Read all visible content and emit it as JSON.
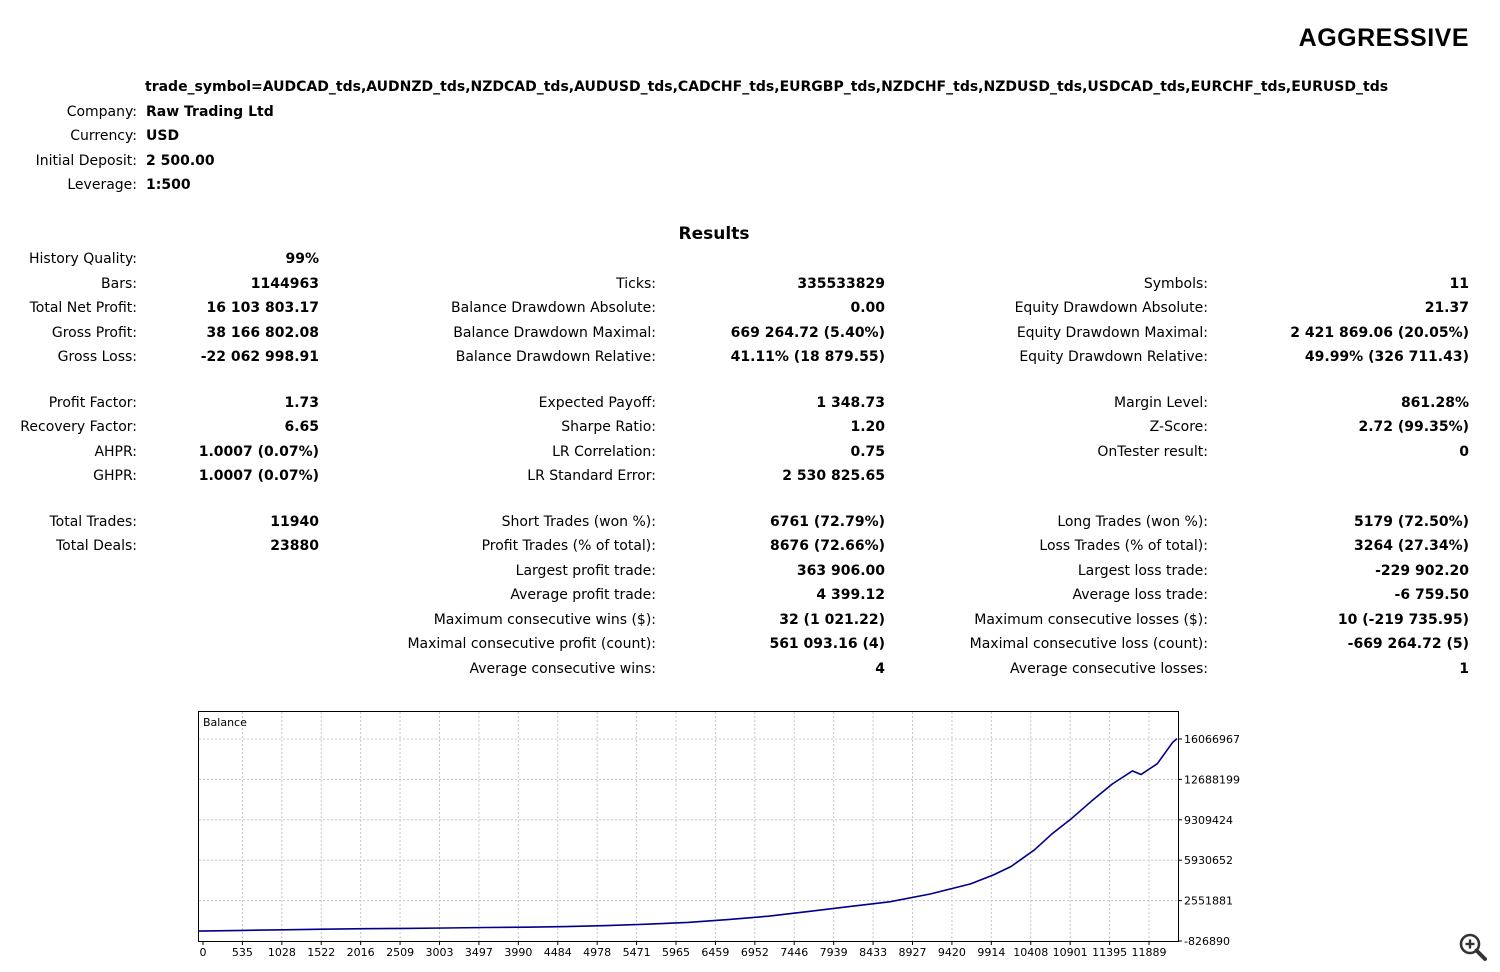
{
  "report": {
    "title": "AGGRESSIVE",
    "trade_symbol": "trade_symbol=AUDCAD_tds,AUDNZD_tds,NZDCAD_tds,AUDUSD_tds,CADCHF_tds,EURGBP_tds,NZDCHF_tds,NZDUSD_tds,USDCAD_tds,EURCHF_tds,EURUSD_tds"
  },
  "info": [
    {
      "label": "Company:",
      "value": "Raw Trading Ltd"
    },
    {
      "label": "Currency:",
      "value": "USD"
    },
    {
      "label": "Initial Deposit:",
      "value": "2 500.00"
    },
    {
      "label": "Leverage:",
      "value": "1:500"
    }
  ],
  "results_heading": "Results",
  "results": {
    "col1": [
      {
        "label": "History Quality:",
        "value": "99%"
      },
      {
        "label": "Bars:",
        "value": "1144963"
      },
      {
        "label": "Total Net Profit:",
        "value": "16 103 803.17"
      },
      {
        "label": "Gross Profit:",
        "value": "38 166 802.08"
      },
      {
        "label": "Gross Loss:",
        "value": "-22 062 998.91"
      },
      {
        "label": "Profit Factor:",
        "value": "1.73"
      },
      {
        "label": "Recovery Factor:",
        "value": "6.65"
      },
      {
        "label": "AHPR:",
        "value": "1.0007 (0.07%)"
      },
      {
        "label": "GHPR:",
        "value": "1.0007 (0.07%)"
      },
      {
        "label": "Total Trades:",
        "value": "11940"
      },
      {
        "label": "Total Deals:",
        "value": "23880"
      }
    ],
    "col2": [
      {
        "label": "Ticks:",
        "value": "335533829"
      },
      {
        "label": "Balance Drawdown Absolute:",
        "value": "0.00"
      },
      {
        "label": "Balance Drawdown Maximal:",
        "value": "669 264.72 (5.40%)"
      },
      {
        "label": "Balance Drawdown Relative:",
        "value": "41.11% (18 879.55)"
      },
      {
        "label": "Expected Payoff:",
        "value": "1 348.73"
      },
      {
        "label": "Sharpe Ratio:",
        "value": "1.20"
      },
      {
        "label": "LR Correlation:",
        "value": "0.75"
      },
      {
        "label": "LR Standard Error:",
        "value": "2 530 825.65"
      },
      {
        "label": "Short Trades (won %):",
        "value": "6761 (72.79%)"
      },
      {
        "label": "Profit Trades (% of total):",
        "value": "8676 (72.66%)"
      },
      {
        "label": "Largest profit trade:",
        "value": "363 906.00"
      },
      {
        "label": "Average profit trade:",
        "value": "4 399.12"
      },
      {
        "label": "Maximum consecutive wins ($):",
        "value": "32 (1 021.22)"
      },
      {
        "label": "Maximal consecutive profit (count):",
        "value": "561 093.16 (4)"
      },
      {
        "label": "Average consecutive wins:",
        "value": "4"
      }
    ],
    "col3": [
      {
        "label": "Symbols:",
        "value": "11"
      },
      {
        "label": "Equity Drawdown Absolute:",
        "value": "21.37"
      },
      {
        "label": "Equity Drawdown Maximal:",
        "value": "2 421 869.06 (20.05%)"
      },
      {
        "label": "Equity Drawdown Relative:",
        "value": "49.99% (326 711.43)"
      },
      {
        "label": "Margin Level:",
        "value": "861.28%"
      },
      {
        "label": "Z-Score:",
        "value": "2.72 (99.35%)"
      },
      {
        "label": "OnTester result:",
        "value": "0"
      },
      {
        "label": "Long Trades (won %):",
        "value": "5179 (72.50%)"
      },
      {
        "label": "Loss Trades (% of total):",
        "value": "3264 (27.34%)"
      },
      {
        "label": "Largest loss trade:",
        "value": "-229 902.20"
      },
      {
        "label": "Average loss trade:",
        "value": "-6 759.50"
      },
      {
        "label": "Maximum consecutive losses ($):",
        "value": "10 (-219 735.95)"
      },
      {
        "label": "Maximal consecutive loss (count):",
        "value": "-669 264.72 (5)"
      },
      {
        "label": "Average consecutive losses:",
        "value": "1"
      }
    ]
  },
  "chart_data": {
    "type": "line",
    "title": "Balance",
    "x_ticks": [
      "0",
      "535",
      "1028",
      "1522",
      "2016",
      "2509",
      "3003",
      "3497",
      "3990",
      "4484",
      "4978",
      "5471",
      "5965",
      "6459",
      "6952",
      "7446",
      "7939",
      "8433",
      "8927",
      "9420",
      "9914",
      "10408",
      "10901",
      "11395",
      "11889"
    ],
    "y_ticks": [
      "16066967",
      "12688199",
      "9309424",
      "5930652",
      "2551881",
      "-826890"
    ],
    "xlim": [
      0,
      11940
    ],
    "ylim": [
      -826890,
      17500000
    ],
    "grid": true,
    "series": [
      {
        "color": "#00008b",
        "x": [
          0,
          535,
          1028,
          1522,
          2016,
          2509,
          3003,
          3497,
          3990,
          4484,
          4978,
          5471,
          5965,
          6459,
          6952,
          7446,
          7939,
          8433,
          8927,
          9420,
          9700,
          9914,
          10200,
          10408,
          10650,
          10901,
          11150,
          11395,
          11500,
          11700,
          11889,
          11940
        ],
        "y": [
          2500,
          60000,
          110000,
          160000,
          200000,
          230000,
          260000,
          300000,
          330000,
          380000,
          460000,
          580000,
          730000,
          960000,
          1250000,
          1650000,
          2050000,
          2450000,
          3100000,
          3950000,
          4700000,
          5400000,
          6800000,
          8100000,
          9400000,
          10900000,
          12300000,
          13400000,
          13100000,
          14000000,
          15800000,
          16103803
        ]
      }
    ]
  },
  "icons": {
    "zoom": "zoom-in-icon"
  }
}
